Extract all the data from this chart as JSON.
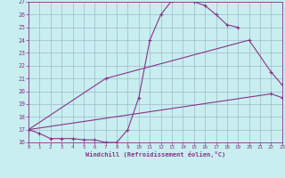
{
  "background_color": "#c8eef0",
  "grid_color": "#a0b8cc",
  "line_color": "#883388",
  "xlim": [
    0,
    23
  ],
  "ylim": [
    16,
    27
  ],
  "yticks": [
    16,
    17,
    18,
    19,
    20,
    21,
    22,
    23,
    24,
    25,
    26,
    27
  ],
  "xticks": [
    0,
    1,
    2,
    3,
    4,
    5,
    6,
    7,
    8,
    9,
    10,
    11,
    12,
    13,
    14,
    15,
    16,
    17,
    18,
    19,
    20,
    21,
    22,
    23
  ],
  "xlabel": "Windchill (Refroidissement éolien,°C)",
  "line1_x": [
    0,
    1,
    2,
    3,
    4,
    5,
    6,
    7,
    8,
    9,
    10,
    11,
    12,
    13,
    14,
    15,
    16,
    17,
    18,
    19
  ],
  "line1_y": [
    17.0,
    16.7,
    16.3,
    16.3,
    16.3,
    16.2,
    16.2,
    16.0,
    16.0,
    17.0,
    19.5,
    24.0,
    26.0,
    27.1,
    27.2,
    27.0,
    26.7,
    26.0,
    25.2,
    25.0
  ],
  "line2_x": [
    0,
    7,
    20,
    22,
    23
  ],
  "line2_y": [
    17.0,
    21.0,
    24.0,
    21.5,
    20.5
  ],
  "line3_x": [
    0,
    22,
    23
  ],
  "line3_y": [
    17.0,
    19.8,
    19.5
  ]
}
